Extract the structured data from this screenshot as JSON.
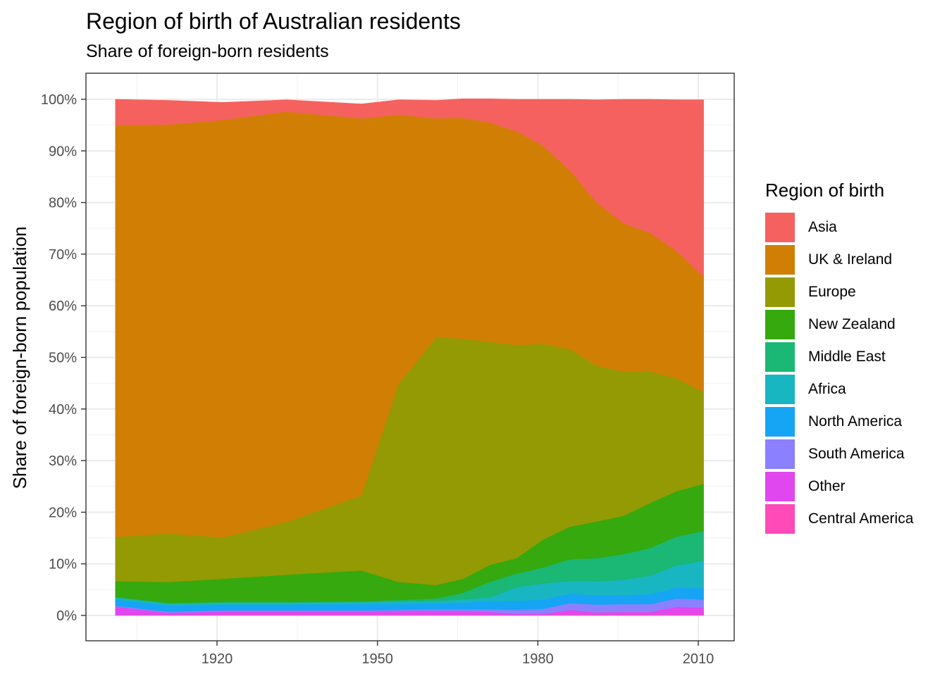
{
  "chart_data": {
    "type": "area",
    "stacked": true,
    "title": "Region of birth of Australian residents",
    "subtitle": "Share of foreign-born residents",
    "xlabel": "",
    "ylabel": "Share of foreign-born population",
    "xlim": [
      1901,
      2011
    ],
    "ylim": [
      0,
      100
    ],
    "x_ticks": [
      1920,
      1950,
      1980,
      2010
    ],
    "x_tick_labels": [
      "1920",
      "1950",
      "1980",
      "2010"
    ],
    "y_ticks": [
      0,
      10,
      20,
      30,
      40,
      50,
      60,
      70,
      80,
      90,
      100
    ],
    "y_tick_labels": [
      "0%",
      "10%",
      "20%",
      "30%",
      "40%",
      "50%",
      "60%",
      "70%",
      "80%",
      "90%",
      "100%"
    ],
    "grid": true,
    "legend_title": "Region of birth",
    "legend_position": "right",
    "x": [
      1901,
      1911,
      1921,
      1933,
      1947,
      1954,
      1961,
      1966,
      1971,
      1976,
      1981,
      1986,
      1991,
      1996,
      2001,
      2006,
      2011
    ],
    "series": [
      {
        "name": "Central America",
        "color": "#FF4AB7",
        "values": [
          0.1,
          0.1,
          0.1,
          0.1,
          0.1,
          0.1,
          0.1,
          0.1,
          0.1,
          0.1,
          0.1,
          0.2,
          0.2,
          0.2,
          0.2,
          0.2,
          0.2
        ]
      },
      {
        "name": "Other",
        "color": "#E047EE",
        "values": [
          1.6,
          0.4,
          0.7,
          0.7,
          0.7,
          0.8,
          0.8,
          0.8,
          0.6,
          0.2,
          0.2,
          0.9,
          0.4,
          0.5,
          0.5,
          1.5,
          1.3
        ]
      },
      {
        "name": "South America",
        "color": "#8B80FF",
        "values": [
          0.2,
          0.2,
          0.2,
          0.2,
          0.2,
          0.2,
          0.3,
          0.3,
          0.5,
          0.8,
          1.0,
          1.3,
          1.5,
          1.5,
          1.5,
          1.6,
          1.6
        ]
      },
      {
        "name": "North America",
        "color": "#16A4F5",
        "values": [
          1.2,
          1.2,
          1.1,
          1.1,
          1.2,
          1.1,
          1.1,
          1.3,
          1.5,
          1.7,
          1.8,
          1.8,
          1.8,
          1.8,
          1.9,
          2.1,
          2.2
        ]
      },
      {
        "name": "Africa",
        "color": "#18B6C1",
        "values": [
          0.4,
          0.4,
          0.4,
          0.4,
          0.4,
          0.5,
          0.5,
          0.6,
          0.8,
          2.7,
          3.1,
          2.5,
          2.7,
          2.9,
          3.6,
          4.3,
          5.3
        ]
      },
      {
        "name": "Middle East",
        "color": "#1BB774",
        "values": [
          0.1,
          0.1,
          0.1,
          0.1,
          0.1,
          0.3,
          0.5,
          1.3,
          3.0,
          2.6,
          3.1,
          4.2,
          4.5,
          5.0,
          5.4,
          5.6,
          5.8
        ]
      },
      {
        "name": "New Zealand",
        "color": "#35A90D",
        "values": [
          3.0,
          4.1,
          4.5,
          5.3,
          6.0,
          3.5,
          2.6,
          2.7,
          3.3,
          3.0,
          5.4,
          6.3,
          7.1,
          7.4,
          8.7,
          8.8,
          9.1
        ]
      },
      {
        "name": "Europe",
        "color": "#939A03",
        "values": [
          8.6,
          9.4,
          8.0,
          10.2,
          14.5,
          38.4,
          48.0,
          46.5,
          43.2,
          41.3,
          37.9,
          34.4,
          30.2,
          27.9,
          25.5,
          21.8,
          17.8
        ]
      },
      {
        "name": "UK & Ireland",
        "color": "#D07F04",
        "values": [
          79.8,
          79.2,
          80.9,
          79.5,
          73.1,
          52.1,
          42.4,
          42.8,
          42.5,
          41.4,
          38.4,
          34.6,
          31.6,
          28.8,
          26.8,
          24.7,
          22.3
        ]
      },
      {
        "name": "Asia",
        "color": "#F5615E",
        "values": [
          5.0,
          4.7,
          3.4,
          2.3,
          2.8,
          2.9,
          3.5,
          3.7,
          4.6,
          6.2,
          9.0,
          13.8,
          19.9,
          24.0,
          25.9,
          29.3,
          34.3
        ]
      }
    ],
    "legend_order": [
      "Asia",
      "UK & Ireland",
      "Europe",
      "New Zealand",
      "Middle East",
      "Africa",
      "North America",
      "South America",
      "Other",
      "Central America"
    ]
  }
}
